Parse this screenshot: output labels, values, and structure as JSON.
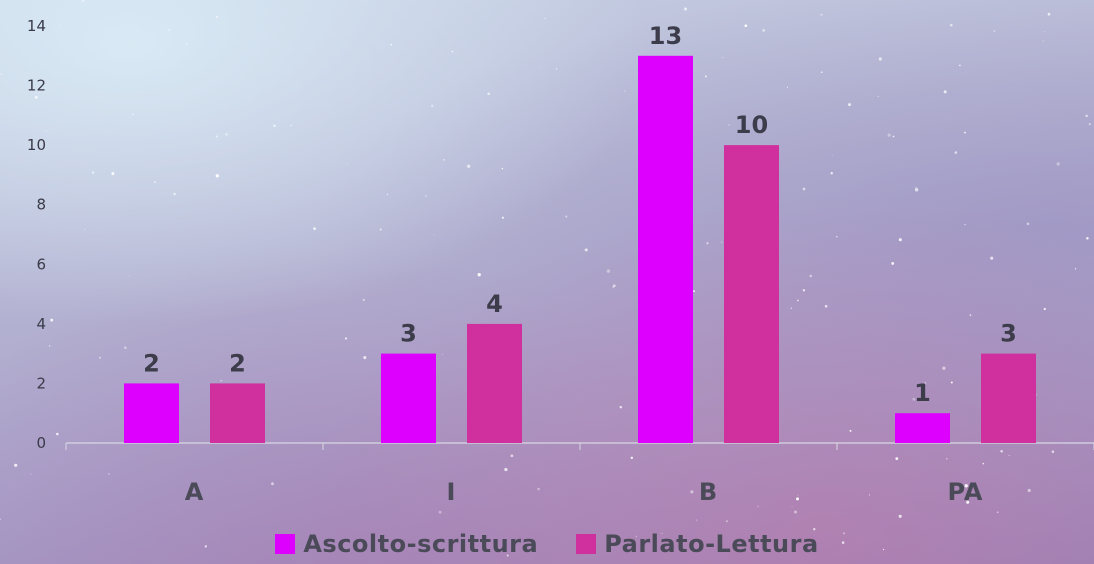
{
  "chart_data": {
    "type": "bar",
    "categories": [
      "A",
      "I",
      "B",
      "PA"
    ],
    "series": [
      {
        "name": "Ascolto-scrittura",
        "values": [
          2,
          3,
          13,
          1
        ],
        "color": "#dd00ff"
      },
      {
        "name": "Parlato-Lettura",
        "values": [
          2,
          4,
          10,
          3
        ],
        "color": "#d0309e"
      }
    ],
    "ylim": [
      0,
      14
    ],
    "yticks": [
      0,
      2,
      4,
      6,
      8,
      10,
      12,
      14
    ],
    "grid": false,
    "legend_position": "bottom",
    "data_labels": true
  }
}
